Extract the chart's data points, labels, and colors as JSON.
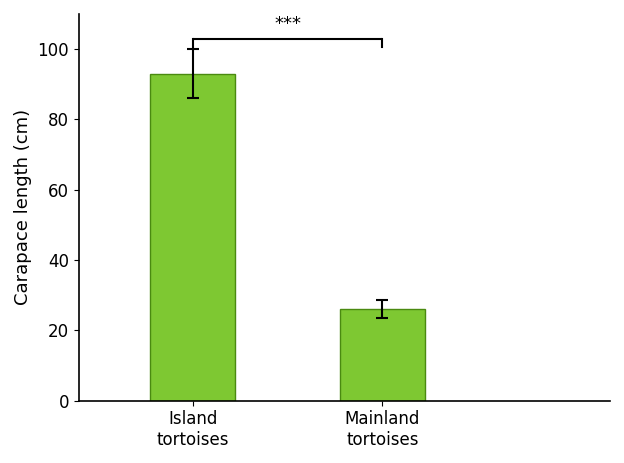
{
  "categories": [
    "Island\ntortoises",
    "Mainland\ntortoises"
  ],
  "values": [
    93,
    26
  ],
  "errors": [
    7,
    2.5
  ],
  "bar_color": "#7ec832",
  "bar_edgecolor": "#4a8a10",
  "ylabel": "Carapace length (cm)",
  "ylim": [
    0,
    110
  ],
  "yticks": [
    0,
    20,
    40,
    60,
    80,
    100
  ],
  "significance_label": "***",
  "sig_y": 103,
  "bar_width": 0.45,
  "background_color": "#ffffff",
  "tick_fontsize": 12,
  "label_fontsize": 13,
  "sig_fontsize": 13,
  "xlim": [
    -0.6,
    2.2
  ]
}
